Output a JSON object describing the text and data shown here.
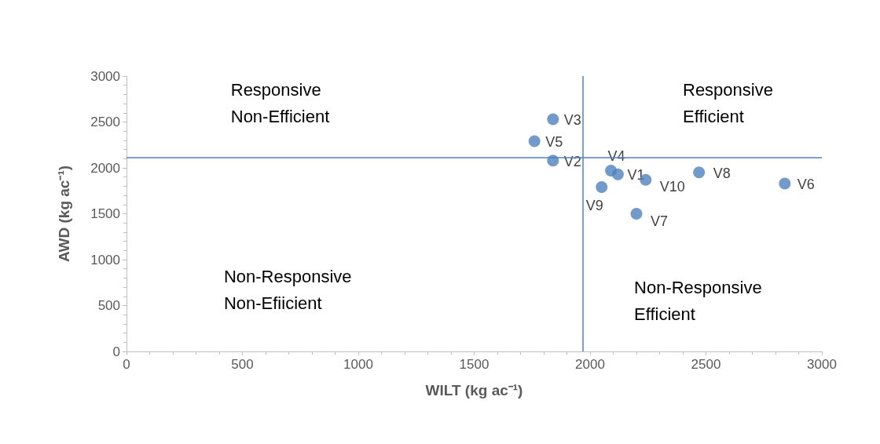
{
  "chart_data": {
    "type": "scatter",
    "xlabel": "WILT (kg ac⁻¹)",
    "ylabel": "AWD (kg ac⁻¹)",
    "x": [
      2120,
      1840,
      1840,
      2090,
      1760,
      2840,
      2200,
      2470,
      2050,
      2240
    ],
    "series": [
      {
        "color": "#4f81bd",
        "values": [
          1930,
          2080,
          2530,
          1970,
          2290,
          1830,
          1500,
          1950,
          1790,
          1870
        ]
      }
    ],
    "xlim": [
      0,
      3000
    ],
    "xticks": [
      0,
      500,
      1000,
      1500,
      2000,
      2500,
      3000
    ],
    "ylim": [
      0,
      3000
    ],
    "yticks": [
      0,
      500,
      1000,
      1500,
      2000,
      2500,
      3000
    ],
    "grid": false,
    "marker": "circle",
    "ref_lines": [
      {
        "axis": "x",
        "value": 1970,
        "color": "#4f81bd"
      },
      {
        "axis": "y",
        "value": 2110,
        "color": "#4f81bd"
      }
    ],
    "annotations": [
      {
        "text": "V1",
        "x": 2120,
        "y": 1930
      },
      {
        "text": "V2",
        "x": 1840,
        "y": 2080
      },
      {
        "text": "V3",
        "x": 1840,
        "y": 2530
      },
      {
        "text": "V4",
        "x": 2090,
        "y": 1970
      },
      {
        "text": "V5",
        "x": 1760,
        "y": 2290
      },
      {
        "text": "V6",
        "x": 2840,
        "y": 1830
      },
      {
        "text": "V7",
        "x": 2200,
        "y": 1500
      },
      {
        "text": "V8",
        "x": 2470,
        "y": 1950
      },
      {
        "text": "V9",
        "x": 2050,
        "y": 1790
      },
      {
        "text": "V10",
        "x": 2240,
        "y": 1870
      },
      "Responsive\nNon-Efficient",
      "Responsive\nEfficient",
      "Non-Responsive\nNon-Efiicient",
      "Non-Responsive\nEfficient"
    ]
  }
}
